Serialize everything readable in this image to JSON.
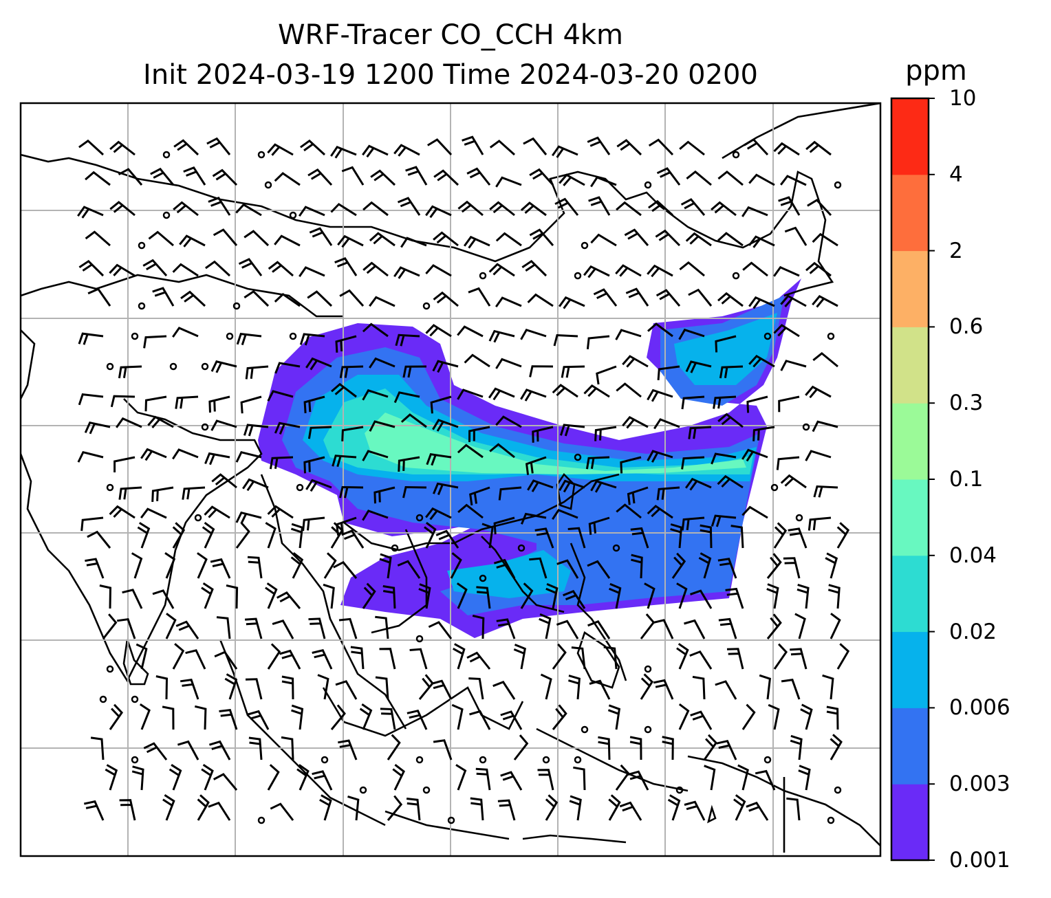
{
  "title": {
    "line1": "WRF-Tracer CO_CCH 4km",
    "line2": "Init 2024-03-19 1200 Time 2024-03-20 0200"
  },
  "colorbar": {
    "unit": "ppm",
    "ticks": [
      "0.001",
      "0.003",
      "0.006",
      "0.02",
      "0.04",
      "0.1",
      "0.3",
      "0.6",
      "2",
      "4",
      "10"
    ],
    "colors": [
      "#6a2bf7",
      "#3373f2",
      "#06b2ec",
      "#2ddcd2",
      "#68f8c0",
      "#9bfa98",
      "#d1e289",
      "#fdb065",
      "#fe6e3c",
      "#fd2a15"
    ]
  }
}
